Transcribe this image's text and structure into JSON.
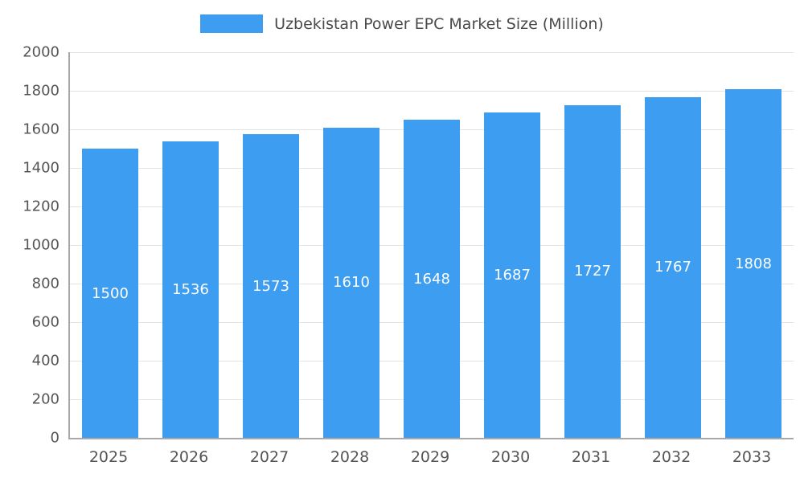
{
  "legend": {
    "label": "Uzbekistan Power EPC Market Size (Million)"
  },
  "chart_data": {
    "type": "bar",
    "title": "Uzbekistan Power EPC Market Size (Million)",
    "categories": [
      "2025",
      "2026",
      "2027",
      "2028",
      "2029",
      "2030",
      "2031",
      "2032",
      "2033"
    ],
    "values": [
      1500,
      1536,
      1573,
      1610,
      1648,
      1687,
      1727,
      1767,
      1808
    ],
    "xlabel": "",
    "ylabel": "",
    "ylim": [
      0,
      2000
    ],
    "ytick_step": 200,
    "grid": true,
    "legend_position": "top",
    "bar_color": "#3d9df0",
    "bar_label_color": "#ffffff",
    "axis_text_color": "#555555",
    "gridline_color": "#e2e2e2"
  }
}
